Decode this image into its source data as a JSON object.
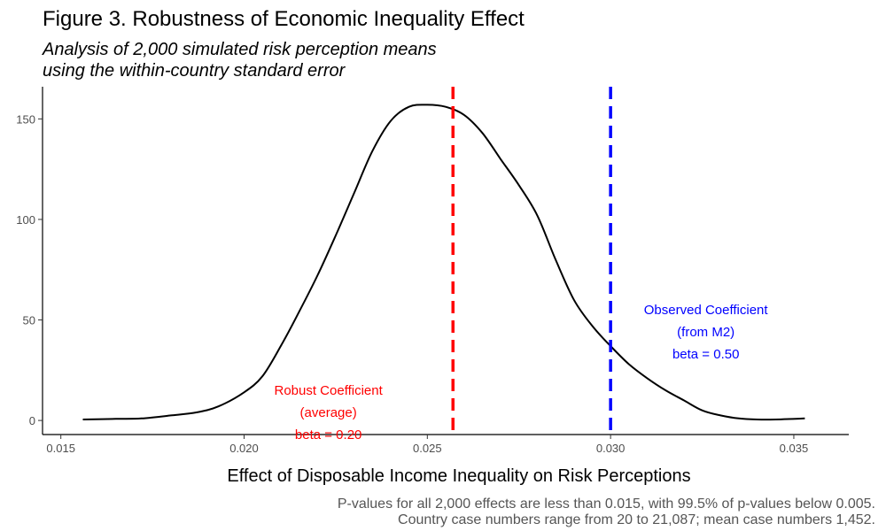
{
  "chart_data": {
    "type": "line",
    "title": "Figure 3. Robustness of Economic Inequality Effect",
    "subtitle": [
      "Analysis of 2,000 simulated risk perception means",
      "using the within-country standard error"
    ],
    "xlabel": "Effect of Disposable Income Inequality on Risk Perceptions",
    "ylabel": "",
    "xlim": [
      0.0145,
      0.0365
    ],
    "ylim": [
      -7,
      166
    ],
    "x_ticks": [
      0.015,
      0.02,
      0.025,
      0.03,
      0.035
    ],
    "x_tick_labels": [
      "0.015",
      "0.020",
      "0.025",
      "0.030",
      "0.035"
    ],
    "y_ticks": [
      0,
      50,
      100,
      150
    ],
    "y_tick_labels": [
      "0",
      "50",
      "100",
      "150"
    ],
    "grid": false,
    "series": [
      {
        "color": "#000000",
        "x": [
          0.0156,
          0.0165,
          0.0172,
          0.018,
          0.0187,
          0.0193,
          0.02,
          0.0205,
          0.021,
          0.0215,
          0.022,
          0.0225,
          0.023,
          0.0235,
          0.024,
          0.0245,
          0.025,
          0.0255,
          0.026,
          0.0265,
          0.027,
          0.0275,
          0.028,
          0.0285,
          0.029,
          0.0295,
          0.03,
          0.0305,
          0.031,
          0.0315,
          0.032,
          0.0325,
          0.033,
          0.0335,
          0.034,
          0.0345,
          0.0353
        ],
        "y": [
          0.5,
          0.8,
          1,
          2.5,
          4,
          7,
          14,
          22,
          37,
          54,
          72,
          92,
          113,
          134,
          149,
          156,
          157,
          156,
          152,
          143,
          130,
          117,
          102,
          80,
          60,
          47,
          37,
          28,
          21,
          15,
          10,
          5,
          2.5,
          1,
          0.5,
          0.5,
          1
        ]
      }
    ],
    "reference_lines": [
      {
        "x": 0.0257,
        "color": "#ff0000",
        "label": [
          "Robust Coefficient",
          "(average)",
          "beta = 0.20"
        ],
        "label_x": 0.0223,
        "label_y": [
          15,
          4,
          -7
        ]
      },
      {
        "x": 0.03,
        "color": "#0000ff",
        "label": [
          "Observed Coefficient",
          "(from M2)",
          "beta = 0.50"
        ],
        "label_x": 0.0326,
        "label_y": [
          55,
          44,
          33
        ]
      }
    ]
  },
  "caption": [
    "P-values for all 2,000 effects are less than 0.015, with 99.5% of p-values below 0.005.",
    "Country case numbers range from 20 to 21,087; mean case numbers 1,452."
  ]
}
